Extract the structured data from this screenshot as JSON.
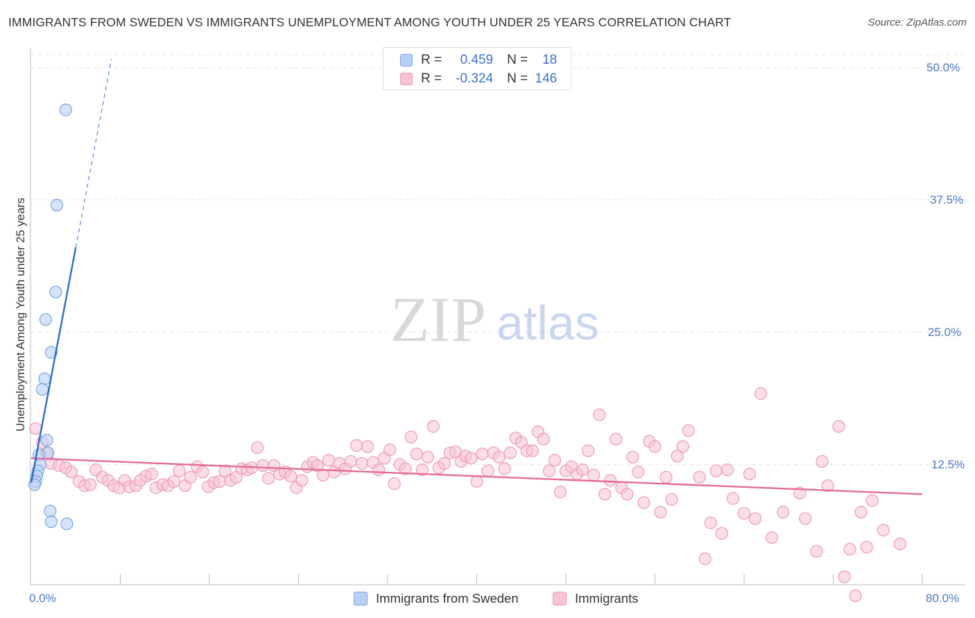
{
  "title": "IMMIGRANTS FROM SWEDEN VS IMMIGRANTS UNEMPLOYMENT AMONG YOUTH UNDER 25 YEARS CORRELATION CHART",
  "source": "Source: ZipAtlas.com",
  "watermark": {
    "zip": "ZIP",
    "atlas": "atlas"
  },
  "legend": {
    "r_label": "R =",
    "n_label": "N =",
    "series1": {
      "r": "0.459",
      "n": "18"
    },
    "series2": {
      "r": "-0.324",
      "n": "146"
    }
  },
  "bottom_legend": {
    "series1": "Immigrants from Sweden",
    "series2": "Immigrants"
  },
  "axis": {
    "x_min_label": "0.0%",
    "x_max_label": "80.0%",
    "y_ticks": [
      "50.0%",
      "37.5%",
      "25.0%",
      "12.5%"
    ],
    "ylabel": "Unemployment Among Youth under 25 years"
  },
  "colors": {
    "blue_fill": "#b8d0f5",
    "blue_stroke": "#7aa3e0",
    "blue_line": "#2a6ad0",
    "pink_fill": "#f8c3d3",
    "pink_stroke": "#ee9ab5",
    "pink_line": "#e46a98"
  },
  "chart_data": {
    "type": "scatter",
    "title": "IMMIGRANTS FROM SWEDEN VS IMMIGRANTS UNEMPLOYMENT AMONG YOUTH UNDER 25 YEARS CORRELATION CHART",
    "xlabel": "",
    "ylabel": "Unemployment Among Youth under 25 years",
    "xlim": [
      0,
      80
    ],
    "ylim": [
      0,
      52
    ],
    "y_gridlines": [
      12.5,
      25.0,
      37.5,
      50.0
    ],
    "series": [
      {
        "name": "Immigrants from Sweden",
        "r": 0.459,
        "n": 18,
        "trend": {
          "x0": 0,
          "y0": 10.8,
          "x1": 4,
          "y1": 33,
          "dashed_to": {
            "x": 7.2,
            "y": 50.8
          }
        },
        "points": [
          [
            3.1,
            46.0
          ],
          [
            2.3,
            37.0
          ],
          [
            2.2,
            28.8
          ],
          [
            1.3,
            26.2
          ],
          [
            1.8,
            23.1
          ],
          [
            1.2,
            20.6
          ],
          [
            1.0,
            19.6
          ],
          [
            1.4,
            14.8
          ],
          [
            1.5,
            13.6
          ],
          [
            0.7,
            13.4
          ],
          [
            0.8,
            12.5
          ],
          [
            0.6,
            11.9
          ],
          [
            0.5,
            11.4
          ],
          [
            0.4,
            10.9
          ],
          [
            0.3,
            10.6
          ],
          [
            1.7,
            8.1
          ],
          [
            1.8,
            7.1
          ],
          [
            3.2,
            6.9
          ]
        ]
      },
      {
        "name": "Immigrants",
        "r": -0.324,
        "n": 146,
        "trend": {
          "x0": 0,
          "y0": 13.1,
          "x1": 80,
          "y1": 9.7
        },
        "points": [
          [
            0.4,
            15.9
          ],
          [
            1.0,
            14.6
          ],
          [
            1.4,
            13.6
          ],
          [
            1.8,
            12.6
          ],
          [
            2.5,
            12.4
          ],
          [
            3.1,
            12.2
          ],
          [
            3.6,
            11.8
          ],
          [
            4.3,
            10.9
          ],
          [
            4.8,
            10.5
          ],
          [
            5.3,
            10.6
          ],
          [
            5.8,
            12.0
          ],
          [
            6.4,
            11.3
          ],
          [
            6.9,
            11.0
          ],
          [
            7.4,
            10.5
          ],
          [
            7.9,
            10.3
          ],
          [
            8.4,
            11.0
          ],
          [
            8.8,
            10.4
          ],
          [
            9.4,
            10.5
          ],
          [
            9.8,
            11.0
          ],
          [
            10.3,
            11.4
          ],
          [
            10.8,
            11.6
          ],
          [
            11.2,
            10.3
          ],
          [
            11.8,
            10.6
          ],
          [
            12.3,
            10.5
          ],
          [
            12.8,
            10.9
          ],
          [
            13.3,
            11.9
          ],
          [
            13.8,
            10.5
          ],
          [
            14.3,
            11.3
          ],
          [
            14.9,
            12.3
          ],
          [
            15.4,
            11.8
          ],
          [
            15.9,
            10.4
          ],
          [
            16.4,
            10.8
          ],
          [
            16.9,
            10.9
          ],
          [
            17.4,
            11.9
          ],
          [
            17.9,
            11.0
          ],
          [
            18.4,
            11.3
          ],
          [
            18.9,
            12.1
          ],
          [
            19.4,
            12.0
          ],
          [
            19.8,
            12.2
          ],
          [
            20.3,
            14.1
          ],
          [
            20.8,
            12.4
          ],
          [
            21.3,
            11.2
          ],
          [
            21.8,
            12.4
          ],
          [
            22.3,
            11.6
          ],
          [
            22.8,
            11.8
          ],
          [
            23.3,
            11.4
          ],
          [
            23.8,
            10.3
          ],
          [
            24.3,
            11.0
          ],
          [
            24.8,
            12.3
          ],
          [
            25.3,
            12.7
          ],
          [
            25.7,
            12.4
          ],
          [
            26.2,
            11.5
          ],
          [
            26.7,
            12.9
          ],
          [
            27.2,
            11.8
          ],
          [
            27.7,
            12.6
          ],
          [
            28.2,
            12.1
          ],
          [
            28.7,
            12.8
          ],
          [
            29.2,
            14.3
          ],
          [
            29.7,
            12.6
          ],
          [
            30.2,
            14.2
          ],
          [
            30.7,
            12.7
          ],
          [
            31.2,
            12.0
          ],
          [
            31.7,
            13.1
          ],
          [
            32.2,
            13.9
          ],
          [
            32.6,
            10.7
          ],
          [
            33.1,
            12.5
          ],
          [
            33.6,
            12.1
          ],
          [
            34.1,
            15.1
          ],
          [
            34.6,
            13.5
          ],
          [
            35.1,
            12.0
          ],
          [
            35.6,
            13.2
          ],
          [
            36.1,
            16.1
          ],
          [
            36.6,
            12.2
          ],
          [
            37.1,
            12.6
          ],
          [
            37.6,
            13.6
          ],
          [
            38.1,
            13.7
          ],
          [
            38.6,
            12.8
          ],
          [
            39.0,
            13.3
          ],
          [
            39.5,
            13.1
          ],
          [
            40.0,
            10.9
          ],
          [
            40.5,
            13.5
          ],
          [
            41.0,
            11.9
          ],
          [
            41.5,
            13.6
          ],
          [
            42.0,
            13.2
          ],
          [
            42.5,
            12.1
          ],
          [
            43.0,
            13.6
          ],
          [
            43.5,
            15.0
          ],
          [
            44.0,
            14.6
          ],
          [
            44.5,
            13.8
          ],
          [
            45.0,
            13.8
          ],
          [
            45.5,
            15.6
          ],
          [
            46.0,
            14.9
          ],
          [
            46.5,
            11.9
          ],
          [
            47.0,
            12.9
          ],
          [
            47.5,
            9.9
          ],
          [
            48.0,
            11.9
          ],
          [
            48.5,
            12.3
          ],
          [
            49.0,
            11.6
          ],
          [
            49.5,
            12.0
          ],
          [
            50.0,
            13.8
          ],
          [
            50.5,
            11.5
          ],
          [
            51.0,
            17.2
          ],
          [
            51.5,
            9.7
          ],
          [
            52.0,
            11.0
          ],
          [
            52.5,
            14.9
          ],
          [
            53.0,
            10.3
          ],
          [
            53.5,
            9.7
          ],
          [
            54.0,
            13.2
          ],
          [
            54.5,
            11.8
          ],
          [
            55.0,
            8.9
          ],
          [
            55.5,
            14.7
          ],
          [
            56.0,
            14.2
          ],
          [
            56.5,
            8.0
          ],
          [
            57.0,
            11.3
          ],
          [
            57.5,
            9.2
          ],
          [
            58.0,
            13.3
          ],
          [
            58.5,
            14.2
          ],
          [
            59.0,
            15.7
          ],
          [
            60.0,
            11.3
          ],
          [
            60.5,
            3.6
          ],
          [
            61.0,
            7.0
          ],
          [
            61.5,
            11.9
          ],
          [
            62.0,
            6.0
          ],
          [
            62.5,
            12.0
          ],
          [
            63.0,
            9.3
          ],
          [
            64.0,
            7.9
          ],
          [
            64.5,
            11.6
          ],
          [
            65.0,
            7.4
          ],
          [
            65.5,
            19.2
          ],
          [
            66.5,
            5.6
          ],
          [
            67.5,
            8.0
          ],
          [
            69.0,
            9.8
          ],
          [
            69.5,
            7.4
          ],
          [
            70.5,
            4.3
          ],
          [
            71.0,
            12.8
          ],
          [
            71.5,
            10.5
          ],
          [
            72.5,
            16.1
          ],
          [
            73.0,
            1.9
          ],
          [
            73.5,
            4.5
          ],
          [
            74.0,
            0.1
          ],
          [
            74.5,
            8.0
          ],
          [
            75.0,
            4.7
          ],
          [
            75.5,
            9.1
          ],
          [
            76.5,
            6.3
          ],
          [
            78.0,
            5.0
          ]
        ]
      }
    ]
  }
}
